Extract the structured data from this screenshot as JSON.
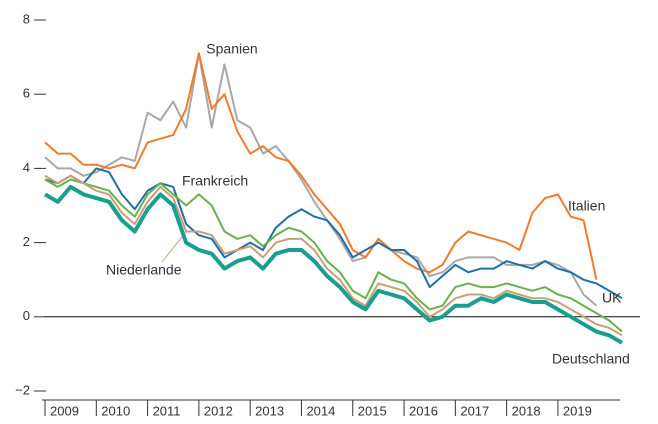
{
  "chart_data": {
    "type": "line",
    "x": [
      2009,
      2009.25,
      2009.5,
      2009.75,
      2010,
      2010.25,
      2010.5,
      2010.75,
      2011,
      2011.25,
      2011.5,
      2011.75,
      2012,
      2012.25,
      2012.5,
      2012.75,
      2013,
      2013.25,
      2013.5,
      2013.75,
      2014,
      2014.25,
      2014.5,
      2014.75,
      2015,
      2015.25,
      2015.5,
      2015.75,
      2016,
      2016.25,
      2016.5,
      2016.75,
      2017,
      2017.25,
      2017.5,
      2017.75,
      2018,
      2018.25,
      2018.5,
      2018.75,
      2019,
      2019.25,
      2019.5,
      2019.75,
      2020,
      2020.25
    ],
    "series": [
      {
        "name": "Spanien",
        "color": "#a8a8a8",
        "values": [
          4.3,
          4.0,
          4.0,
          3.8,
          3.9,
          4.1,
          4.3,
          4.2,
          5.5,
          5.3,
          5.8,
          5.1,
          7.1,
          5.1,
          6.8,
          5.3,
          5.1,
          4.4,
          4.6,
          4.2,
          3.7,
          3.1,
          2.6,
          2.1,
          1.5,
          1.6,
          2.1,
          1.8,
          1.7,
          1.6,
          1.1,
          1.2,
          1.5,
          1.6,
          1.6,
          1.6,
          1.4,
          1.4,
          1.4,
          1.5,
          1.4,
          1.2,
          0.6,
          0.3,
          null,
          null
        ]
      },
      {
        "name": "Italien",
        "color": "#f07b2b",
        "values": [
          4.7,
          4.4,
          4.4,
          4.1,
          4.1,
          4.0,
          4.1,
          4.0,
          4.7,
          4.8,
          4.9,
          5.6,
          7.1,
          5.6,
          6.0,
          5.0,
          4.4,
          4.6,
          4.3,
          4.2,
          3.8,
          3.3,
          2.9,
          2.5,
          1.8,
          1.6,
          2.1,
          1.8,
          1.5,
          1.3,
          1.2,
          1.4,
          2.0,
          2.3,
          2.2,
          2.1,
          2.0,
          1.8,
          2.8,
          3.2,
          3.3,
          2.7,
          2.6,
          1.0,
          null,
          null
        ]
      },
      {
        "name": "UK",
        "color": "#1f6fa8",
        "values": [
          3.7,
          3.6,
          3.8,
          3.6,
          4.0,
          3.9,
          3.3,
          2.9,
          3.4,
          3.6,
          3.5,
          2.5,
          2.2,
          2.1,
          1.6,
          1.8,
          2.0,
          1.8,
          2.4,
          2.7,
          2.9,
          2.7,
          2.6,
          2.2,
          1.6,
          1.8,
          2.0,
          1.8,
          1.8,
          1.5,
          0.8,
          1.1,
          1.4,
          1.2,
          1.3,
          1.3,
          1.5,
          1.4,
          1.3,
          1.5,
          1.3,
          1.2,
          1.0,
          0.9,
          0.7,
          0.5
        ]
      },
      {
        "name": "Frankreich",
        "color": "#6ab04c",
        "values": [
          3.7,
          3.5,
          3.7,
          3.6,
          3.5,
          3.4,
          3.0,
          2.7,
          3.3,
          3.6,
          3.3,
          3.0,
          3.3,
          3.0,
          2.3,
          2.1,
          2.2,
          1.9,
          2.2,
          2.4,
          2.3,
          2.0,
          1.5,
          1.2,
          0.7,
          0.5,
          1.2,
          1.0,
          0.9,
          0.5,
          0.2,
          0.3,
          0.8,
          0.9,
          0.8,
          0.8,
          0.9,
          0.8,
          0.7,
          0.8,
          0.6,
          0.5,
          0.3,
          0.1,
          -0.1,
          -0.4
        ]
      },
      {
        "name": "Niederlande",
        "color": "#c8a078",
        "values": [
          3.8,
          3.6,
          3.8,
          3.6,
          3.4,
          3.3,
          2.8,
          2.5,
          3.1,
          3.5,
          3.2,
          2.3,
          2.3,
          2.2,
          1.7,
          1.8,
          1.9,
          1.6,
          2.0,
          2.1,
          2.1,
          1.8,
          1.3,
          1.0,
          0.5,
          0.3,
          0.9,
          0.8,
          0.7,
          0.4,
          0.0,
          0.2,
          0.5,
          0.6,
          0.6,
          0.5,
          0.7,
          0.6,
          0.5,
          0.5,
          0.4,
          0.2,
          0.0,
          -0.2,
          -0.3,
          -0.5
        ]
      },
      {
        "name": "Deutschland",
        "color": "#1a9e8f",
        "values": [
          3.3,
          3.1,
          3.5,
          3.3,
          3.2,
          3.1,
          2.6,
          2.3,
          2.9,
          3.3,
          3.0,
          2.0,
          1.8,
          1.7,
          1.3,
          1.5,
          1.6,
          1.3,
          1.7,
          1.8,
          1.8,
          1.5,
          1.1,
          0.8,
          0.4,
          0.2,
          0.7,
          0.6,
          0.5,
          0.2,
          -0.1,
          0.0,
          0.3,
          0.3,
          0.5,
          0.4,
          0.6,
          0.5,
          0.4,
          0.4,
          0.2,
          0.0,
          -0.2,
          -0.4,
          -0.5,
          -0.7
        ]
      }
    ],
    "xlim": [
      2009,
      2020.6
    ],
    "xticks": [
      {
        "value": 2009,
        "label": "2009"
      },
      {
        "value": 2010,
        "label": "2010"
      },
      {
        "value": 2011,
        "label": "2011"
      },
      {
        "value": 2012,
        "label": "2012"
      },
      {
        "value": 2013,
        "label": "2013"
      },
      {
        "value": 2014,
        "label": "2014"
      },
      {
        "value": 2015,
        "label": "2015"
      },
      {
        "value": 2016,
        "label": "2016"
      },
      {
        "value": 2017,
        "label": "2017"
      },
      {
        "value": 2018,
        "label": "2018"
      },
      {
        "value": 2019,
        "label": "2019"
      }
    ],
    "ylim": [
      -2,
      8
    ],
    "yticks": [
      {
        "value": -2,
        "label": "−2"
      },
      0,
      2,
      4,
      6,
      8
    ]
  }
}
